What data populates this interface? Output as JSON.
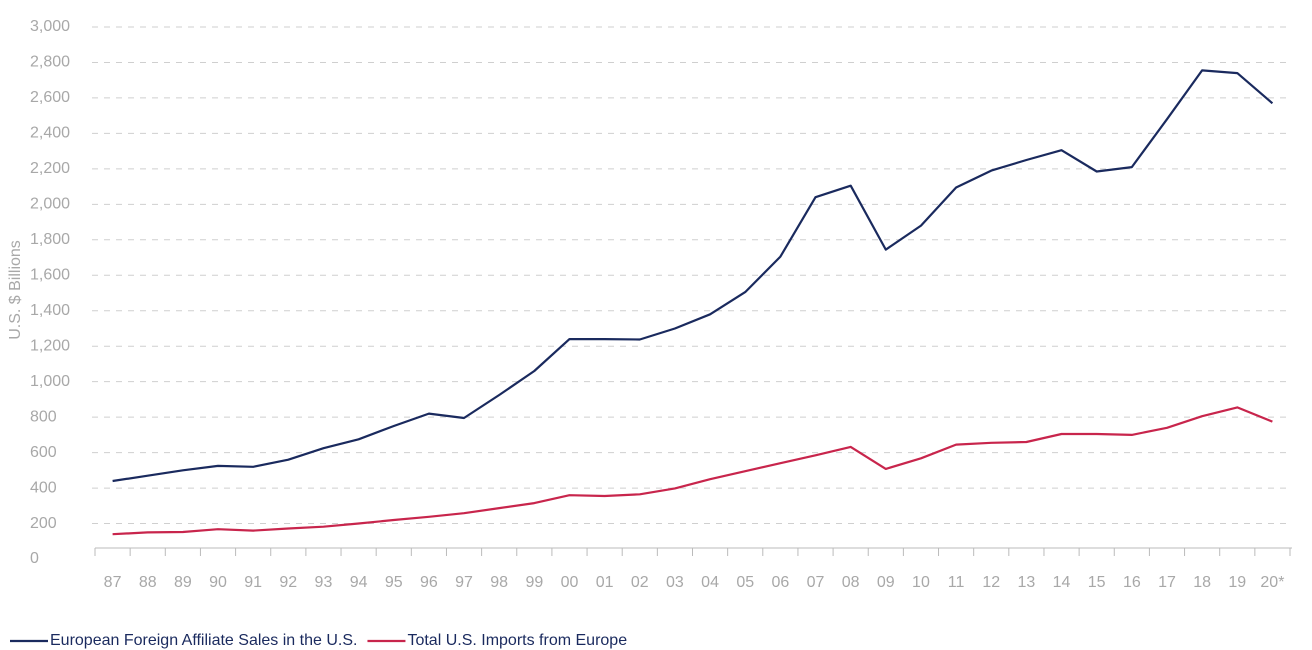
{
  "chart_data": {
    "type": "line",
    "y_label": "U.S. $ Billions",
    "categories": [
      "87",
      "88",
      "89",
      "90",
      "91",
      "92",
      "93",
      "94",
      "95",
      "96",
      "97",
      "98",
      "99",
      "00",
      "01",
      "02",
      "03",
      "04",
      "05",
      "06",
      "07",
      "08",
      "09",
      "10",
      "11",
      "12",
      "13",
      "14",
      "15",
      "16",
      "17",
      "18",
      "19",
      "20*"
    ],
    "series": [
      {
        "name": "European Foreign Affiliate Sales in the U.S.",
        "color": "#1a2a5e",
        "values": [
          440,
          470,
          500,
          525,
          520,
          560,
          625,
          675,
          750,
          820,
          795,
          925,
          1060,
          1240,
          1240,
          1238,
          1300,
          1380,
          1505,
          1705,
          2040,
          2105,
          1745,
          1880,
          2095,
          2190,
          2250,
          2305,
          2185,
          2210,
          2480,
          2755,
          2740,
          2570
        ]
      },
      {
        "name": "Total U.S. Imports from Europe",
        "color": "#c8254c",
        "values": [
          140,
          150,
          152,
          168,
          160,
          172,
          182,
          200,
          220,
          238,
          258,
          287,
          315,
          360,
          355,
          365,
          398,
          450,
          495,
          540,
          585,
          632,
          508,
          568,
          645,
          655,
          660,
          705,
          705,
          700,
          740,
          805,
          855,
          775
        ]
      }
    ],
    "ylim": [
      0,
      3000
    ],
    "yticks": [
      0,
      200,
      400,
      600,
      800,
      {
        "value": 1000,
        "label": "1,000"
      },
      {
        "value": 1200,
        "label": "1,200"
      },
      {
        "value": 1400,
        "label": "1,400"
      },
      {
        "value": 1600,
        "label": "1,600"
      },
      {
        "value": 1800,
        "label": "1,800"
      },
      {
        "value": 2000,
        "label": "2,000"
      },
      {
        "value": 2200,
        "label": "2,200"
      },
      {
        "value": 2400,
        "label": "2,400"
      },
      {
        "value": 2600,
        "label": "2,600"
      },
      {
        "value": 2800,
        "label": "2,800"
      },
      {
        "value": 3000,
        "label": "3,000"
      }
    ],
    "grid": true
  }
}
